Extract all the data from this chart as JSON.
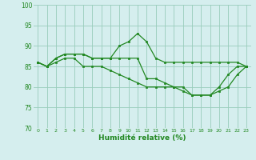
{
  "xlabel": "Humidité relative (%)",
  "background_color": "#d5eeee",
  "grid_color": "#99ccbb",
  "line_color": "#228822",
  "ylim": [
    70,
    100
  ],
  "yticks": [
    70,
    75,
    80,
    85,
    90,
    95,
    100
  ],
  "xlim": [
    -0.5,
    23.5
  ],
  "xticks": [
    0,
    1,
    2,
    3,
    4,
    5,
    6,
    7,
    8,
    9,
    10,
    11,
    12,
    13,
    14,
    15,
    16,
    17,
    18,
    19,
    20,
    21,
    22,
    23
  ],
  "line1_x": [
    0,
    1,
    2,
    3,
    4,
    5,
    6,
    7,
    8,
    9,
    10,
    11,
    12,
    13,
    14,
    15,
    16,
    17,
    18,
    19,
    20,
    21,
    22,
    23
  ],
  "line1_y": [
    86,
    85,
    87,
    88,
    88,
    88,
    87,
    87,
    87,
    90,
    91,
    93,
    91,
    87,
    86,
    86,
    86,
    86,
    86,
    86,
    86,
    86,
    86,
    85
  ],
  "line2_x": [
    0,
    1,
    2,
    3,
    4,
    5,
    6,
    7,
    8,
    9,
    10,
    11,
    12,
    13,
    14,
    15,
    16,
    17,
    18,
    19,
    20,
    21,
    22,
    23
  ],
  "line2_y": [
    86,
    85,
    87,
    88,
    88,
    88,
    87,
    87,
    87,
    87,
    87,
    87,
    82,
    82,
    81,
    80,
    79,
    78,
    78,
    78,
    80,
    83,
    85,
    85
  ],
  "line3_x": [
    0,
    1,
    2,
    3,
    4,
    5,
    6,
    7,
    8,
    9,
    10,
    11,
    12,
    13,
    14,
    15,
    16,
    17,
    18,
    19,
    20,
    21,
    22,
    23
  ],
  "line3_y": [
    86,
    85,
    86,
    87,
    87,
    85,
    85,
    85,
    84,
    83,
    82,
    81,
    80,
    80,
    80,
    80,
    80,
    78,
    78,
    78,
    79,
    80,
    83,
    85
  ]
}
